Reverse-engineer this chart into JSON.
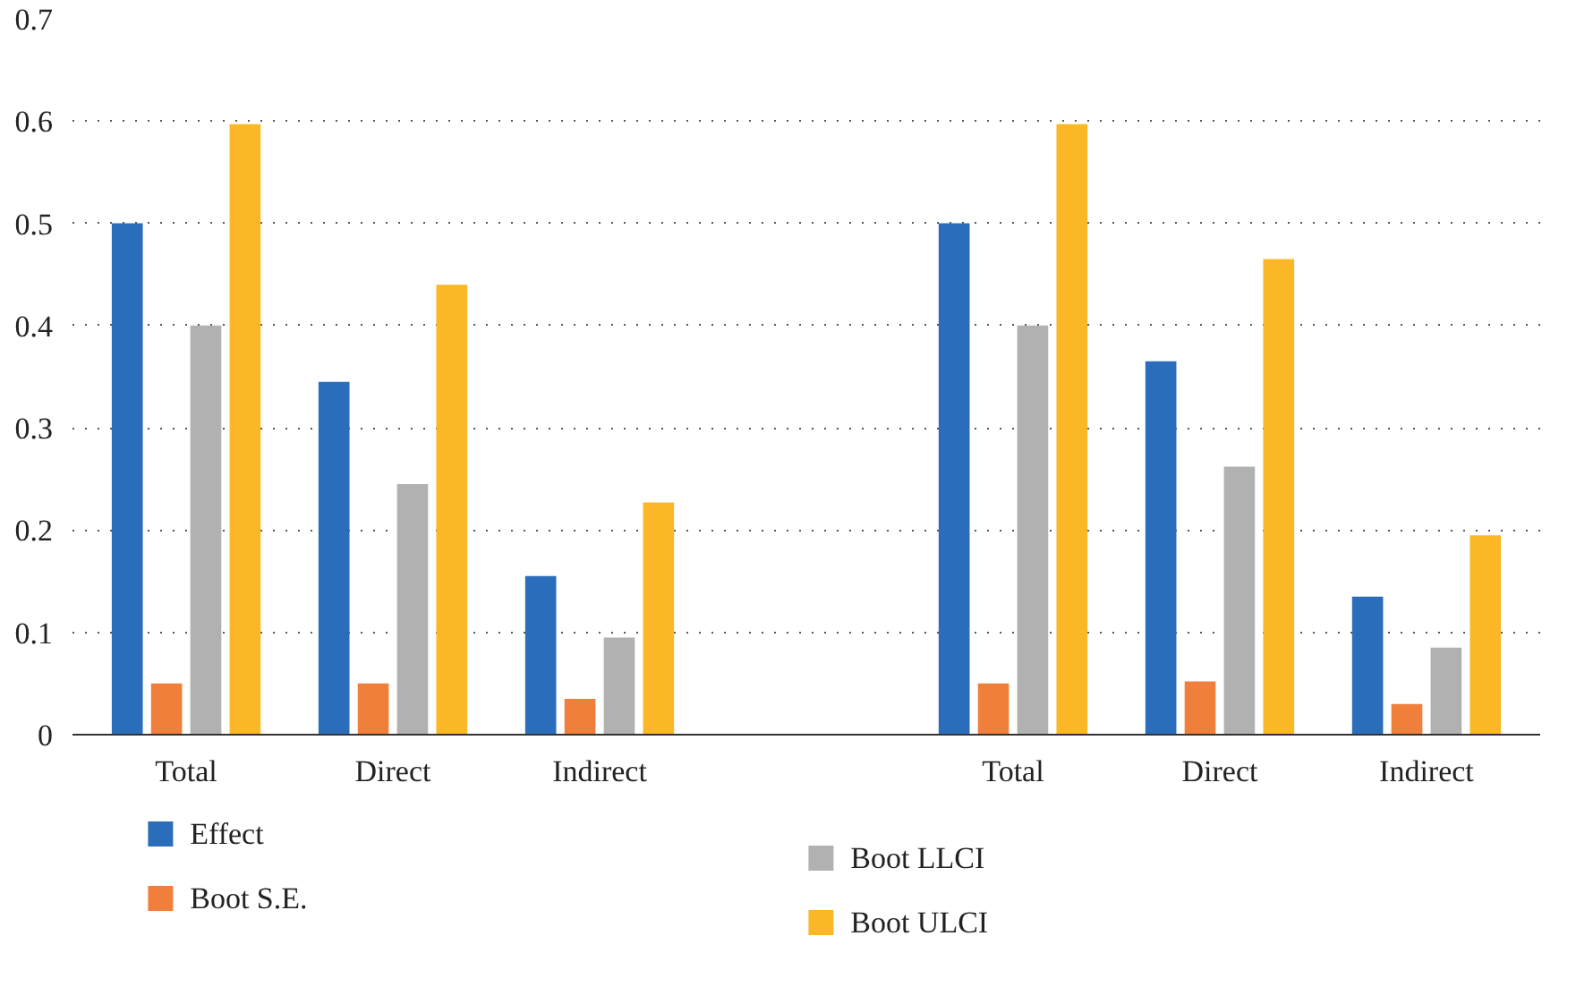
{
  "chart_data": {
    "type": "bar",
    "categories": [
      "Total",
      "Direct",
      "Indirect",
      null,
      "Total",
      "Direct",
      "Indirect"
    ],
    "series": [
      {
        "name": "Effect",
        "color": "#2a6ebb",
        "values": [
          0.5,
          0.345,
          0.155,
          null,
          0.5,
          0.365,
          0.135
        ]
      },
      {
        "name": "Boot S.E.",
        "color": "#f07f3c",
        "values": [
          0.05,
          0.05,
          0.035,
          null,
          0.05,
          0.052,
          0.03
        ]
      },
      {
        "name": "Boot LLCI",
        "color": "#b1b1b1",
        "values": [
          0.4,
          0.245,
          0.095,
          null,
          0.4,
          0.262,
          0.085
        ]
      },
      {
        "name": "Boot ULCI",
        "color": "#fbb726",
        "values": [
          0.597,
          0.44,
          0.227,
          null,
          0.597,
          0.465,
          0.195
        ]
      }
    ],
    "ylim": [
      0,
      0.7
    ],
    "yticks": [
      0,
      0.1,
      0.2,
      0.3,
      0.4,
      0.5,
      0.6,
      0.7
    ],
    "grid": "y",
    "legend": "bottom"
  }
}
